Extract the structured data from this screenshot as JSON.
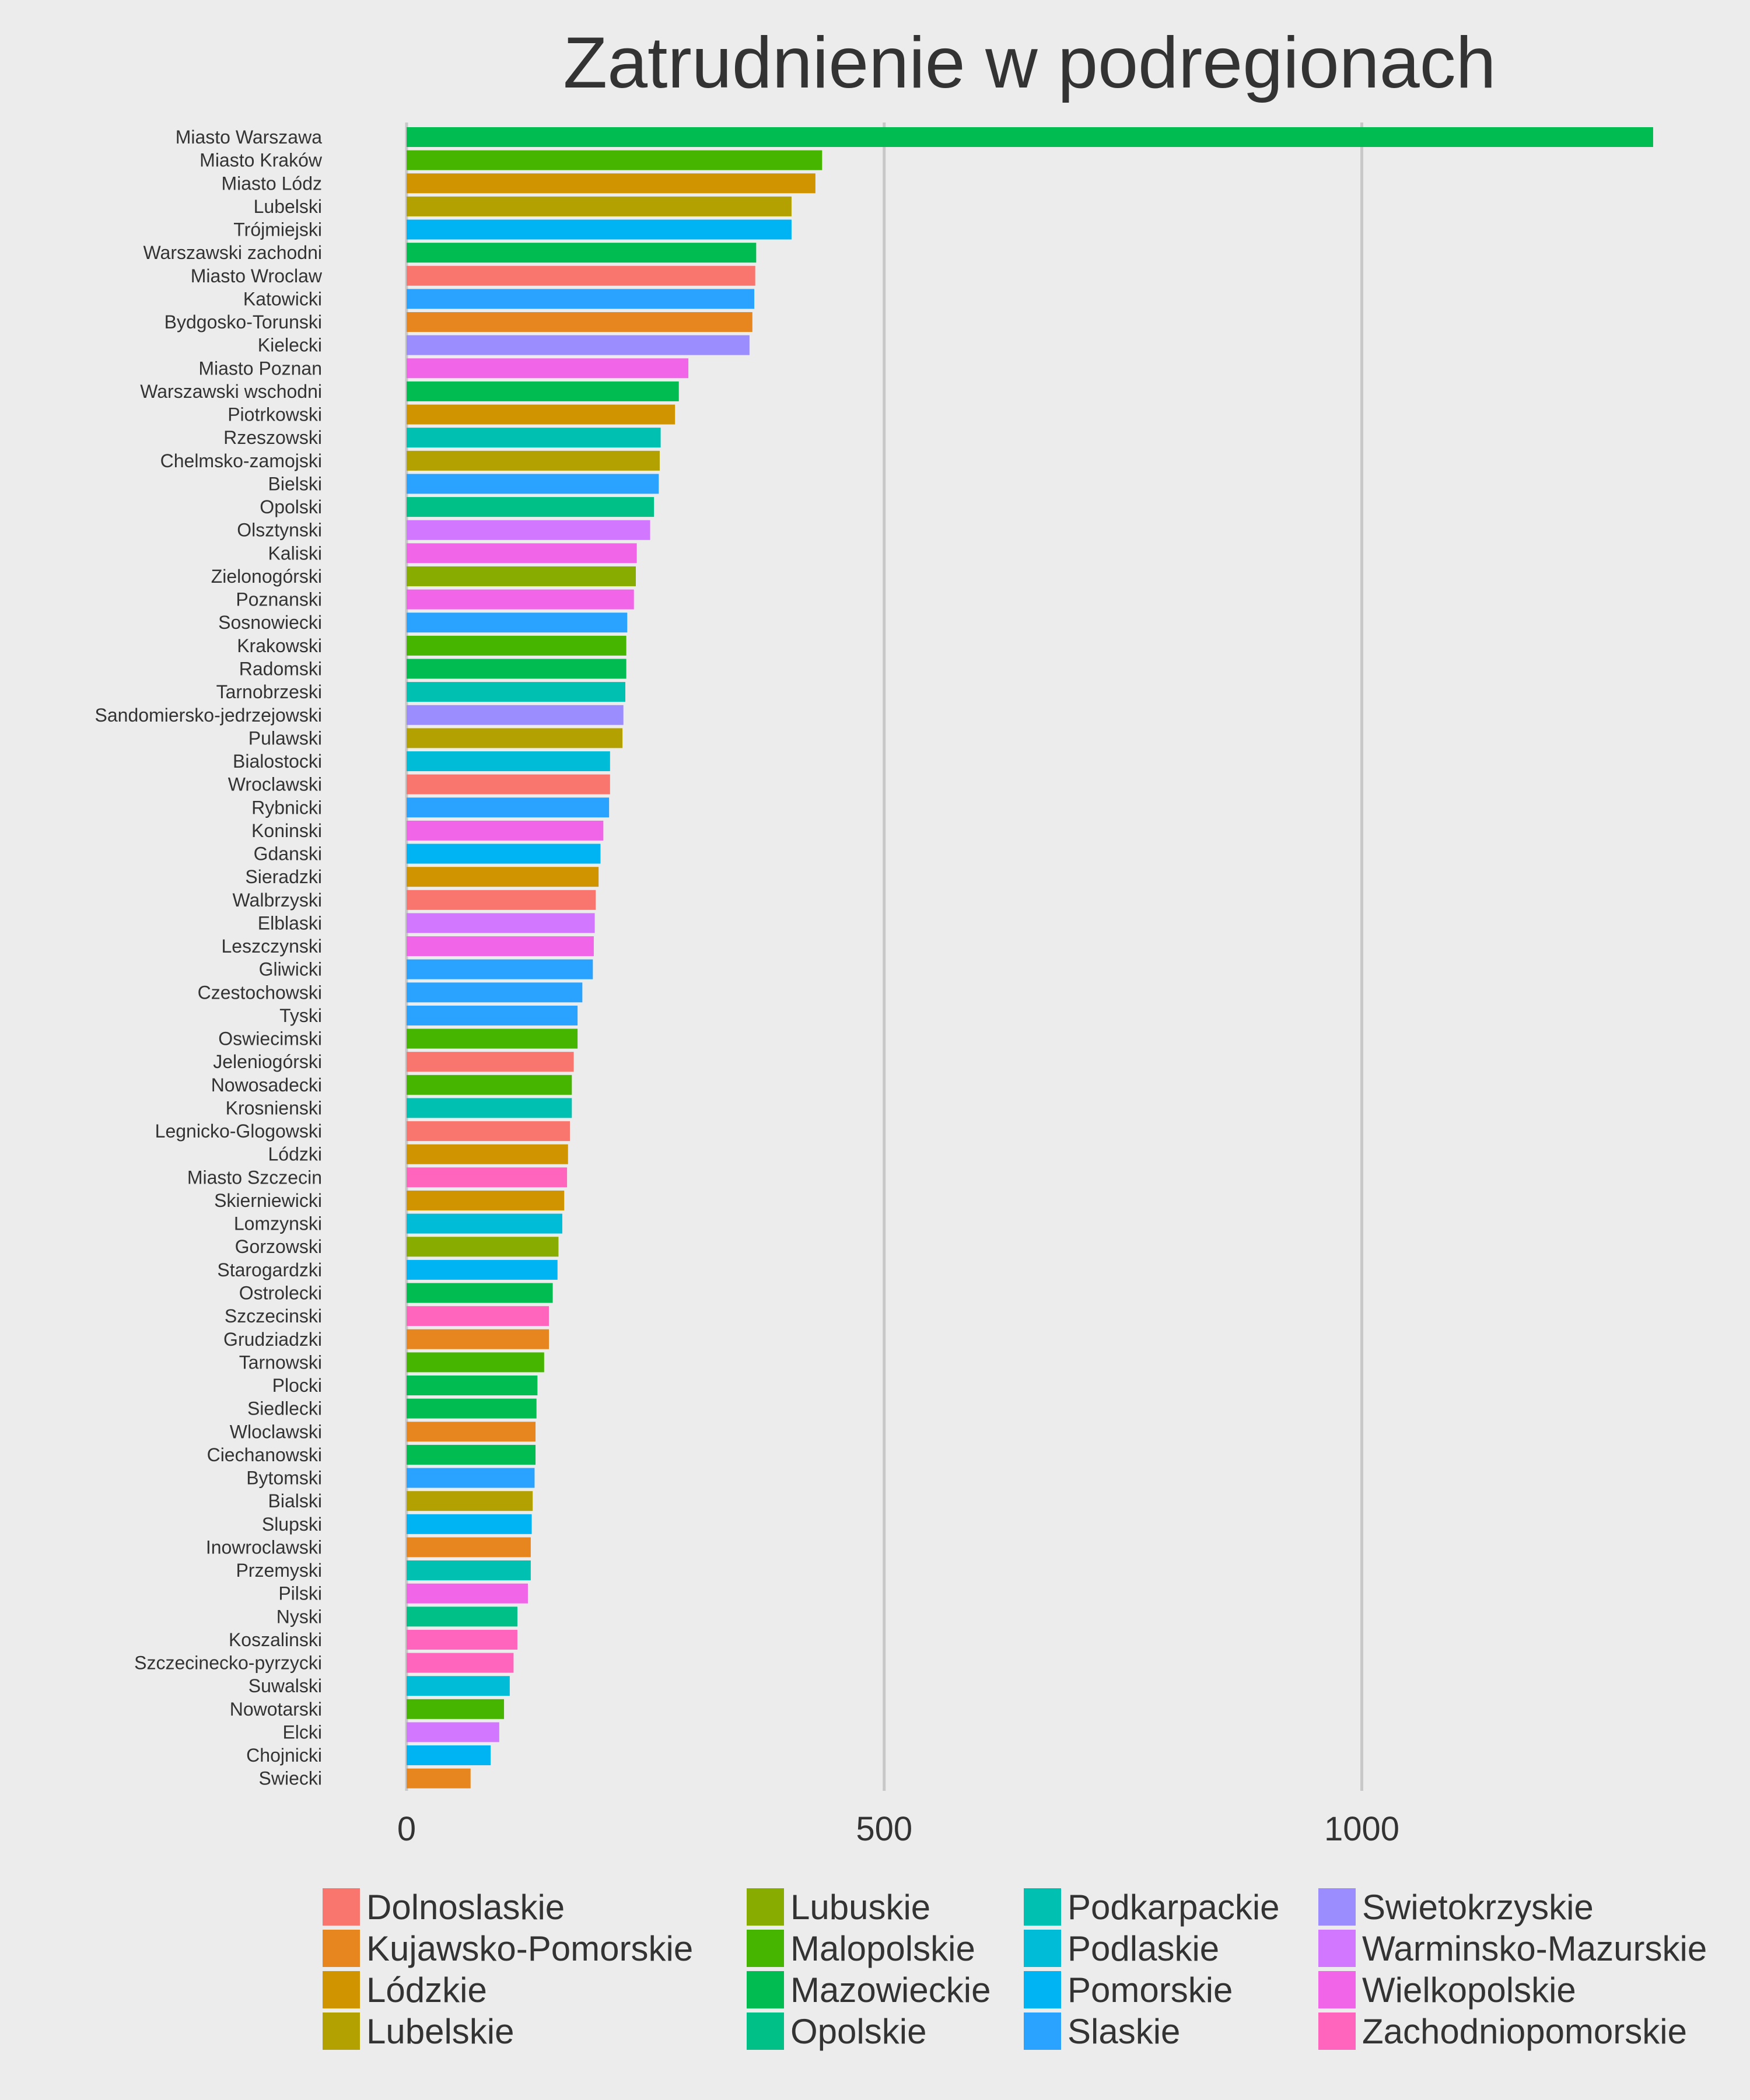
{
  "chart_data": {
    "type": "bar",
    "orientation": "horizontal",
    "title": "Zatrudnienie w podregionach",
    "xlabel": "",
    "ylabel": "",
    "xlim": [
      0,
      1310
    ],
    "xticks": [
      0,
      500,
      1000
    ],
    "grid": "vertical major gridlines",
    "legend_position": "bottom",
    "categories": [
      "Miasto Warszawa",
      "Miasto Kraków",
      "Miasto Lódz",
      "Lubelski",
      "Trójmiejski",
      "Warszawski zachodni",
      "Miasto Wroclaw",
      "Katowicki",
      "Bydgosko-Torunski",
      "Kielecki",
      "Miasto Poznan",
      "Warszawski wschodni",
      "Piotrkowski",
      "Rzeszowski",
      "Chelmsko-zamojski",
      "Bielski",
      "Opolski",
      "Olsztynski",
      "Kaliski",
      "Zielonogórski",
      "Poznanski",
      "Sosnowiecki",
      "Krakowski",
      "Radomski",
      "Tarnobrzeski",
      "Sandomiersko-jedrzejowski",
      "Pulawski",
      "Bialostocki",
      "Wroclawski",
      "Rybnicki",
      "Koninski",
      "Gdanski",
      "Sieradzki",
      "Walbrzyski",
      "Elblaski",
      "Leszczynski",
      "Gliwicki",
      "Czestochowski",
      "Tyski",
      "Oswiecimski",
      "Jeleniogórski",
      "Nowosadecki",
      "Krosnienski",
      "Legnicko-Glogowski",
      "Lódzki",
      "Miasto Szczecin",
      "Skierniewicki",
      "Lomzynski",
      "Gorzowski",
      "Starogardzki",
      "Ostrolecki",
      "Szczecinski",
      "Grudziadzki",
      "Tarnowski",
      "Plocki",
      "Siedlecki",
      "Wloclawski",
      "Ciechanowski",
      "Bytomski",
      "Bialski",
      "Slupski",
      "Inowroclawski",
      "Przemyski",
      "Pilski",
      "Nyski",
      "Koszalinski",
      "Szczecinecko-pyrzycki",
      "Suwalski",
      "Nowotarski",
      "Elcki",
      "Chojnicki",
      "Swiecki"
    ],
    "values": [
      1305,
      435,
      428,
      403,
      403,
      366,
      365,
      364,
      362,
      359,
      295,
      285,
      281,
      266,
      265,
      264,
      259,
      255,
      241,
      240,
      238,
      231,
      230,
      230,
      229,
      227,
      226,
      213,
      213,
      212,
      206,
      203,
      201,
      198,
      197,
      196,
      195,
      184,
      179,
      179,
      175,
      173,
      173,
      171,
      169,
      168,
      165,
      163,
      159,
      158,
      153,
      149,
      149,
      144,
      137,
      136,
      135,
      135,
      134,
      132,
      131,
      130,
      130,
      127,
      116,
      116,
      112,
      108,
      102,
      97,
      88,
      67
    ],
    "groups": [
      "Mazowieckie",
      "Malopolskie",
      "Lódzkie",
      "Lubelskie",
      "Pomorskie",
      "Mazowieckie",
      "Dolnoslaskie",
      "Slaskie",
      "Kujawsko-Pomorskie",
      "Swietokrzyskie",
      "Wielkopolskie",
      "Mazowieckie",
      "Lódzkie",
      "Podkarpackie",
      "Lubelskie",
      "Slaskie",
      "Opolskie",
      "Warminsko-Mazurskie",
      "Wielkopolskie",
      "Lubuskie",
      "Wielkopolskie",
      "Slaskie",
      "Malopolskie",
      "Mazowieckie",
      "Podkarpackie",
      "Swietokrzyskie",
      "Lubelskie",
      "Podlaskie",
      "Dolnoslaskie",
      "Slaskie",
      "Wielkopolskie",
      "Pomorskie",
      "Lódzkie",
      "Dolnoslaskie",
      "Warminsko-Mazurskie",
      "Wielkopolskie",
      "Slaskie",
      "Slaskie",
      "Slaskie",
      "Malopolskie",
      "Dolnoslaskie",
      "Malopolskie",
      "Podkarpackie",
      "Dolnoslaskie",
      "Lódzkie",
      "Zachodniopomorskie",
      "Lódzkie",
      "Podlaskie",
      "Lubuskie",
      "Pomorskie",
      "Mazowieckie",
      "Zachodniopomorskie",
      "Kujawsko-Pomorskie",
      "Malopolskie",
      "Mazowieckie",
      "Mazowieckie",
      "Kujawsko-Pomorskie",
      "Mazowieckie",
      "Slaskie",
      "Lubelskie",
      "Pomorskie",
      "Kujawsko-Pomorskie",
      "Podkarpackie",
      "Wielkopolskie",
      "Opolskie",
      "Zachodniopomorskie",
      "Zachodniopomorskie",
      "Podlaskie",
      "Malopolskie",
      "Warminsko-Mazurskie",
      "Pomorskie",
      "Kujawsko-Pomorskie"
    ],
    "legend": [
      {
        "name": "Dolnoslaskie",
        "color": "#F8766D"
      },
      {
        "name": "Kujawsko-Pomorskie",
        "color": "#E7851E"
      },
      {
        "name": "Lódzkie",
        "color": "#D09400"
      },
      {
        "name": "Lubelskie",
        "color": "#B2A100"
      },
      {
        "name": "Lubuskie",
        "color": "#89AC00"
      },
      {
        "name": "Malopolskie",
        "color": "#45B500"
      },
      {
        "name": "Mazowieckie",
        "color": "#00BC51"
      },
      {
        "name": "Opolskie",
        "color": "#00C087"
      },
      {
        "name": "Podkarpackie",
        "color": "#00C0B2"
      },
      {
        "name": "Podlaskie",
        "color": "#00BCD6"
      },
      {
        "name": "Pomorskie",
        "color": "#00B3F2"
      },
      {
        "name": "Slaskie",
        "color": "#29A3FF"
      },
      {
        "name": "Swietokrzyskie",
        "color": "#9C8DFF"
      },
      {
        "name": "Warminsko-Mazurskie",
        "color": "#D277FF"
      },
      {
        "name": "Wielkopolskie",
        "color": "#F166E8"
      },
      {
        "name": "Zachodniopomorskie",
        "color": "#FF65BC"
      }
    ]
  }
}
